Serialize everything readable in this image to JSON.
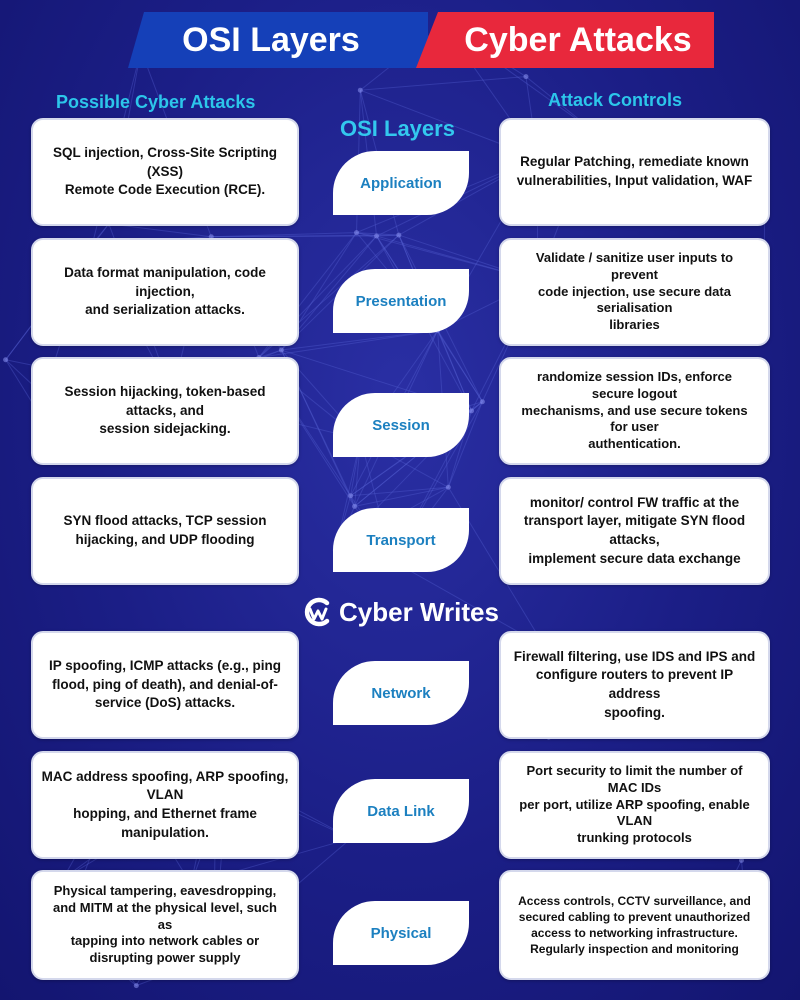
{
  "title_left": "OSI Layers",
  "title_right": "Cyber Attacks",
  "heading_attacks": "Possible Cyber Attacks",
  "heading_layers": "OSI Layers",
  "heading_controls": "Attack Controls",
  "brand": {
    "name": "Cyber Writes",
    "icon": "cyber-writes-logo-icon"
  },
  "colors": {
    "background": "#1b1e86",
    "banner_blue": "#1540b8",
    "banner_red": "#e8283c",
    "heading": "#2cc6ea",
    "layer_text": "#1c80c0"
  },
  "rows": [
    {
      "layer": "Application",
      "attacks": "SQL injection, Cross-Site Scripting\n(XSS)\nRemote Code Execution (RCE).",
      "controls": "Regular Patching, remediate known\nvulnerabilities, Input validation, WAF"
    },
    {
      "layer": "Presentation",
      "attacks": "Data format manipulation, code\ninjection,\nand serialization attacks.",
      "controls": "Validate / sanitize user inputs to\nprevent\ncode injection, use secure data\nserialisation\nlibraries"
    },
    {
      "layer": "Session",
      "attacks": "Session hijacking, token-based\nattacks, and\nsession sidejacking.",
      "controls": "randomize session IDs, enforce\nsecure logout\nmechanisms, and use secure tokens\nfor user\nauthentication."
    },
    {
      "layer": "Transport",
      "attacks": "SYN flood attacks, TCP session\nhijacking, and UDP flooding",
      "controls": "monitor/ control FW traffic at the\ntransport layer, mitigate SYN flood\nattacks,\nimplement secure data exchange"
    },
    {
      "layer": "Network",
      "attacks": "IP spoofing, ICMP attacks (e.g., ping\nflood, ping of death), and denial-of-\nservice (DoS) attacks.",
      "controls": "Firewall filtering, use IDS and IPS and\nconfigure routers to prevent IP\naddress\nspoofing."
    },
    {
      "layer": "Data Link",
      "attacks": "MAC address spoofing, ARP spoofing,\nVLAN\nhopping, and Ethernet frame\nmanipulation.",
      "controls": "Port security to limit the number of\nMAC IDs\nper port, utilize ARP spoofing, enable\nVLAN\ntrunking protocols"
    },
    {
      "layer": "Physical",
      "attacks": "Physical tampering, eavesdropping,\nand MITM at the physical level, such\nas\ntapping into network cables or\ndisrupting power supply",
      "controls": "Access controls, CCTV surveillance, and\nsecured cabling to prevent unauthorized\naccess to networking infrastructure.\nRegularly inspection and monitoring"
    }
  ]
}
